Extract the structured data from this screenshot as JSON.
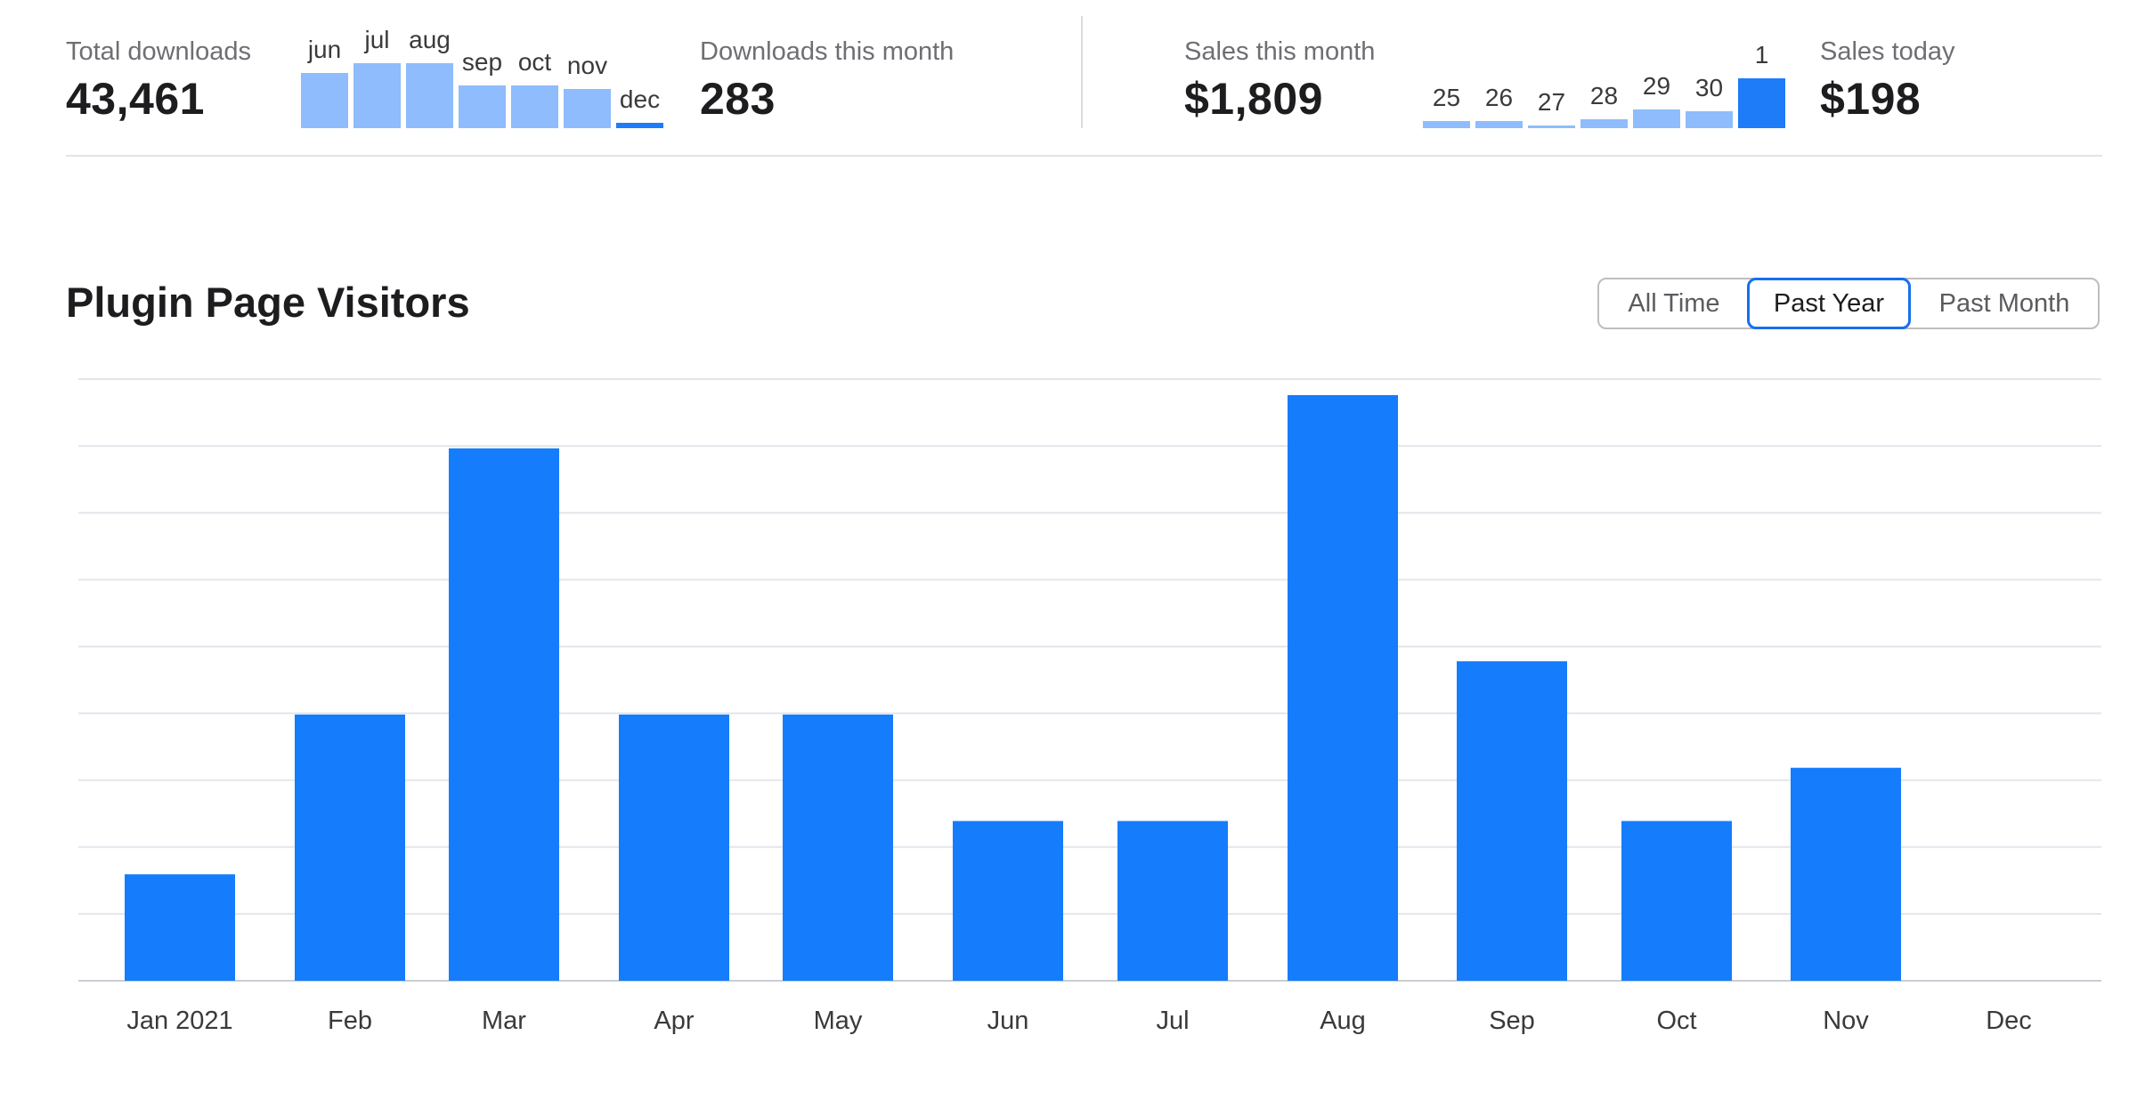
{
  "stats": {
    "total_downloads": {
      "label": "Total downloads",
      "value": "43,461"
    },
    "downloads_this_month": {
      "label": "Downloads this month",
      "value": "283"
    },
    "sales_this_month": {
      "label": "Sales this month",
      "value": "$1,809"
    },
    "sales_today": {
      "label": "Sales today",
      "value": "$198"
    }
  },
  "downloads_sparkline": {
    "labels": [
      "jun",
      "jul",
      "aug",
      "sep",
      "oct",
      "nov",
      "dec"
    ],
    "values": [
      0.56,
      0.66,
      0.66,
      0.44,
      0.44,
      0.4,
      0.05
    ],
    "highlight_index": 6
  },
  "sales_sparkline": {
    "labels": [
      "25",
      "26",
      "27",
      "28",
      "29",
      "30",
      "1"
    ],
    "values": [
      0.15,
      0.15,
      0.06,
      0.18,
      0.37,
      0.34,
      1.0
    ],
    "highlight_index": 6
  },
  "section": {
    "title": "Plugin Page Visitors",
    "ranges": [
      "All Time",
      "Past Year",
      "Past Month"
    ],
    "active_range": "Past Year"
  },
  "colors": {
    "bar": "#157cfb",
    "spark_bar": "#8ebcfc",
    "spark_highlight": "#1e7cf8",
    "gridline": "#e2e6ec",
    "axis": "#c9cdd3"
  },
  "chart_data": {
    "type": "bar",
    "categories": [
      "Jan 2021",
      "Feb",
      "Mar",
      "Apr",
      "May",
      "Jun",
      "Jul",
      "Aug",
      "Sep",
      "Oct",
      "Nov",
      "Dec"
    ],
    "values": [
      2,
      5,
      10,
      5,
      5,
      3,
      3,
      11,
      6,
      3,
      4,
      0
    ],
    "ylim": [
      0,
      11.3
    ],
    "gridlines": 9,
    "grid": true
  }
}
